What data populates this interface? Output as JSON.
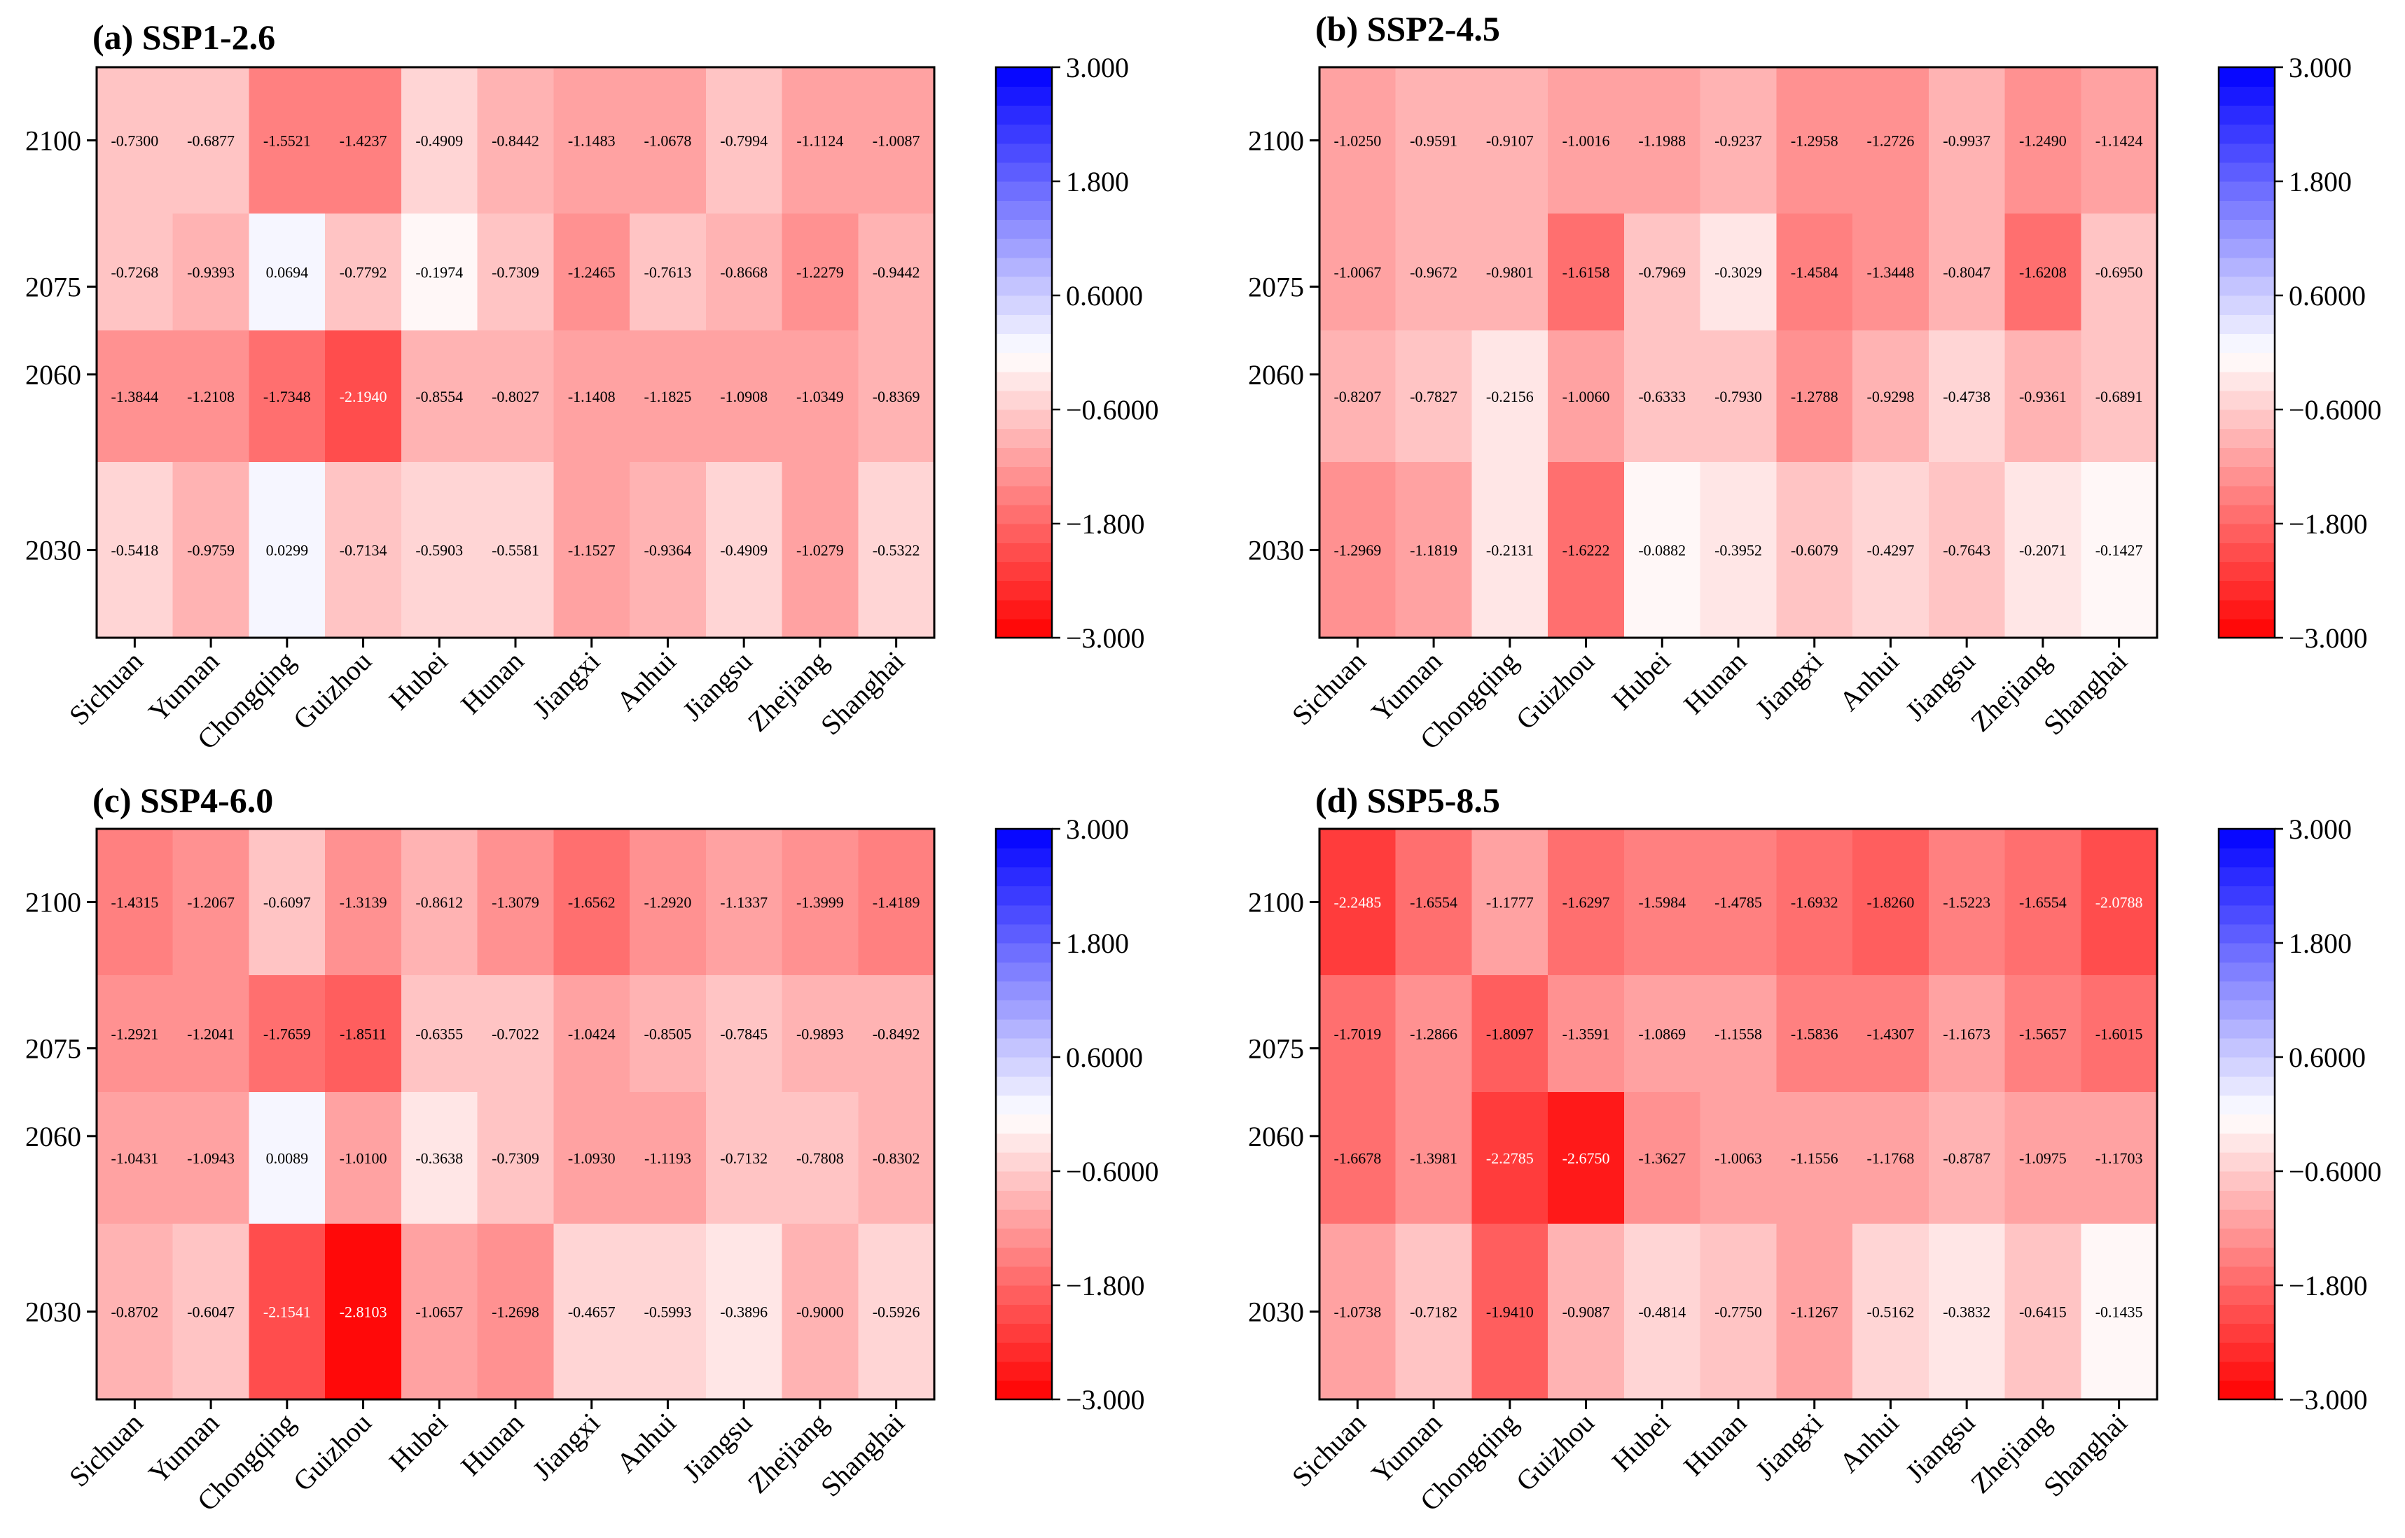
{
  "colorbar": {
    "ticks": [
      "3.000",
      "1.800",
      "0.6000",
      "−0.6000",
      "−1.800",
      "−3.000"
    ],
    "min": -3.0,
    "max": 3.0,
    "levels": 30,
    "low_color": "#ff0000",
    "mid_color": "#ffffff",
    "high_color": "#0000ff"
  },
  "chart_data": [
    {
      "type": "heatmap",
      "title": "(a) SSP1-2.6",
      "columns": [
        "Sichuan",
        "Yunnan",
        "Chongqing",
        "Guizhou",
        "Hubei",
        "Hunan",
        "Jiangxi",
        "Anhui",
        "Jiangsu",
        "Zhejiang",
        "Shanghai"
      ],
      "rows": [
        "2100",
        "2075",
        "2060",
        "2030"
      ],
      "row_spans": [
        [
          2087.5,
          2112.5
        ],
        [
          2067.5,
          2087.5
        ],
        [
          2045,
          2067.5
        ],
        [
          2015,
          2045
        ]
      ],
      "ylim": [
        2015,
        2112.5
      ],
      "values": [
        [
          -0.73,
          -0.6877,
          -1.5521,
          -1.4237,
          -0.4909,
          -0.8442,
          -1.1483,
          -1.0678,
          -0.7994,
          -1.1124,
          -1.0087
        ],
        [
          -0.7268,
          -0.9393,
          0.0694,
          -0.7792,
          -0.1974,
          -0.7309,
          -1.2465,
          -0.7613,
          -0.8668,
          -1.2279,
          -0.9442
        ],
        [
          -1.3844,
          -1.2108,
          -1.7348,
          -2.194,
          -0.8554,
          -0.8027,
          -1.1408,
          -1.1825,
          -1.0908,
          -1.0349,
          -0.8369
        ],
        [
          -0.5418,
          -0.9759,
          0.0299,
          -0.7134,
          -0.5903,
          -0.5581,
          -1.1527,
          -0.9364,
          -0.4909,
          -1.0279,
          -0.5322
        ]
      ],
      "labels": [
        [
          "-0.7300",
          "-0.6877",
          "-1.5521",
          "-1.4237",
          "-0.4909",
          "-0.8442",
          "-1.1483",
          "-1.0678",
          "-0.7994",
          "-1.1124",
          "-1.0087"
        ],
        [
          "-0.7268",
          "-0.9393",
          "0.0694",
          "-0.7792",
          "-0.1974",
          "-0.7309",
          "-1.2465",
          "-0.7613",
          "-0.8668",
          "-1.2279",
          "-0.9442"
        ],
        [
          "-1.3844",
          "-1.2108",
          "-1.7348",
          "-2.1940",
          "-0.8554",
          "-0.8027",
          "-1.1408",
          "-1.1825",
          "-1.0908",
          "-1.0349",
          "-0.8369"
        ],
        [
          "-0.5418",
          "-0.9759",
          "0.0299",
          "-0.7134",
          "-0.5903",
          "-0.5581",
          "-1.1527",
          "-0.9364",
          "-0.4909",
          "-1.0279",
          "-0.5322"
        ]
      ]
    },
    {
      "type": "heatmap",
      "title": "(b) SSP2-4.5",
      "columns": [
        "Sichuan",
        "Yunnan",
        "Chongqing",
        "Guizhou",
        "Hubei",
        "Hunan",
        "Jiangxi",
        "Anhui",
        "Jiangsu",
        "Zhejiang",
        "Shanghai"
      ],
      "rows": [
        "2100",
        "2075",
        "2060",
        "2030"
      ],
      "row_spans": [
        [
          2087.5,
          2112.5
        ],
        [
          2067.5,
          2087.5
        ],
        [
          2045,
          2067.5
        ],
        [
          2015,
          2045
        ]
      ],
      "ylim": [
        2015,
        2112.5
      ],
      "values": [
        [
          -1.025,
          -0.9591,
          -0.9107,
          -1.0016,
          -1.1988,
          -0.9237,
          -1.2958,
          -1.2726,
          -0.9937,
          -1.249,
          -1.1424
        ],
        [
          -1.0067,
          -0.9672,
          -0.9801,
          -1.6158,
          -0.7969,
          -0.3029,
          -1.4584,
          -1.3448,
          -0.8047,
          -1.6208,
          -0.695
        ],
        [
          -0.8207,
          -0.7827,
          -0.2156,
          -1.006,
          -0.6333,
          -0.793,
          -1.2788,
          -0.9298,
          -0.4738,
          -0.9361,
          -0.6891
        ],
        [
          -1.2969,
          -1.1819,
          -0.2131,
          -1.6222,
          -0.0882,
          -0.3952,
          -0.6079,
          -0.4297,
          -0.7643,
          -0.2071,
          -0.1427
        ]
      ],
      "labels": [
        [
          "-1.0250",
          "-0.9591",
          "-0.9107",
          "-1.0016",
          "-1.1988",
          "-0.9237",
          "-1.2958",
          "-1.2726",
          "-0.9937",
          "-1.2490",
          "-1.1424"
        ],
        [
          "-1.0067",
          "-0.9672",
          "-0.9801",
          "-1.6158",
          "-0.7969",
          "-0.3029",
          "-1.4584",
          "-1.3448",
          "-0.8047",
          "-1.6208",
          "-0.6950"
        ],
        [
          "-0.8207",
          "-0.7827",
          "-0.2156",
          "-1.0060",
          "-0.6333",
          "-0.7930",
          "-1.2788",
          "-0.9298",
          "-0.4738",
          "-0.9361",
          "-0.6891"
        ],
        [
          "-1.2969",
          "-1.1819",
          "-0.2131",
          "-1.6222",
          "-0.0882",
          "-0.3952",
          "-0.6079",
          "-0.4297",
          "-0.7643",
          "-0.2071",
          "-0.1427"
        ]
      ]
    },
    {
      "type": "heatmap",
      "title": "(c) SSP4-6.0",
      "columns": [
        "Sichuan",
        "Yunnan",
        "Chongqing",
        "Guizhou",
        "Hubei",
        "Hunan",
        "Jiangxi",
        "Anhui",
        "Jiangsu",
        "Zhejiang",
        "Shanghai"
      ],
      "rows": [
        "2100",
        "2075",
        "2060",
        "2030"
      ],
      "row_spans": [
        [
          2087.5,
          2112.5
        ],
        [
          2067.5,
          2087.5
        ],
        [
          2045,
          2067.5
        ],
        [
          2015,
          2045
        ]
      ],
      "ylim": [
        2015,
        2112.5
      ],
      "values": [
        [
          -1.4315,
          -1.2067,
          -0.6097,
          -1.3139,
          -0.8612,
          -1.3079,
          -1.6562,
          -1.292,
          -1.1337,
          -1.3999,
          -1.4189
        ],
        [
          -1.2921,
          -1.2041,
          -1.7659,
          -1.8511,
          -0.6355,
          -0.7022,
          -1.0424,
          -0.8505,
          -0.7845,
          -0.9893,
          -0.8492
        ],
        [
          -1.0431,
          -1.0943,
          0.0089,
          -1.01,
          -0.3638,
          -0.7309,
          -1.093,
          -1.1193,
          -0.7132,
          -0.7808,
          -0.8302
        ],
        [
          -0.8702,
          -0.6047,
          -2.1541,
          -2.8103,
          -1.0657,
          -1.2698,
          -0.4657,
          -0.5993,
          -0.3896,
          -0.9,
          -0.5926
        ]
      ],
      "labels": [
        [
          "-1.4315",
          "-1.2067",
          "-0.6097",
          "-1.3139",
          "-0.8612",
          "-1.3079",
          "-1.6562",
          "-1.2920",
          "-1.1337",
          "-1.3999",
          "-1.4189"
        ],
        [
          "-1.2921",
          "-1.2041",
          "-1.7659",
          "-1.8511",
          "-0.6355",
          "-0.7022",
          "-1.0424",
          "-0.8505",
          "-0.7845",
          "-0.9893",
          "-0.8492"
        ],
        [
          "-1.0431",
          "-1.0943",
          "0.0089",
          "-1.0100",
          "-0.3638",
          "-0.7309",
          "-1.0930",
          "-1.1193",
          "-0.7132",
          "-0.7808",
          "-0.8302"
        ],
        [
          "-0.8702",
          "-0.6047",
          "-2.1541",
          "-2.8103",
          "-1.0657",
          "-1.2698",
          "-0.4657",
          "-0.5993",
          "-0.3896",
          "-0.9000",
          "-0.5926"
        ]
      ]
    },
    {
      "type": "heatmap",
      "title": "(d) SSP5-8.5",
      "columns": [
        "Sichuan",
        "Yunnan",
        "Chongqing",
        "Guizhou",
        "Hubei",
        "Hunan",
        "Jiangxi",
        "Anhui",
        "Jiangsu",
        "Zhejiang",
        "Shanghai"
      ],
      "rows": [
        "2100",
        "2075",
        "2060",
        "2030"
      ],
      "row_spans": [
        [
          2087.5,
          2112.5
        ],
        [
          2067.5,
          2087.5
        ],
        [
          2045,
          2067.5
        ],
        [
          2015,
          2045
        ]
      ],
      "ylim": [
        2015,
        2112.5
      ],
      "values": [
        [
          -2.2485,
          -1.6554,
          -1.1777,
          -1.6297,
          -1.5984,
          -1.4785,
          -1.6932,
          -1.826,
          -1.5223,
          -1.6554,
          -2.0788
        ],
        [
          -1.7019,
          -1.2866,
          -1.8097,
          -1.3591,
          -1.0869,
          -1.1558,
          -1.5836,
          -1.4307,
          -1.1673,
          -1.5657,
          -1.6015
        ],
        [
          -1.6678,
          -1.3981,
          -2.2785,
          -2.675,
          -1.3627,
          -1.0063,
          -1.1556,
          -1.1768,
          -0.8787,
          -1.0975,
          -1.1703
        ],
        [
          -1.0738,
          -0.7182,
          -1.941,
          -0.9087,
          -0.4814,
          -0.775,
          -1.1267,
          -0.5162,
          -0.3832,
          -0.6415,
          -0.1435
        ]
      ],
      "labels": [
        [
          "-2.2485",
          "-1.6554",
          "-1.1777",
          "-1.6297",
          "-1.5984",
          "-1.4785",
          "-1.6932",
          "-1.8260",
          "-1.5223",
          "-1.6554",
          "-2.0788"
        ],
        [
          "-1.7019",
          "-1.2866",
          "-1.8097",
          "-1.3591",
          "-1.0869",
          "-1.1558",
          "-1.5836",
          "-1.4307",
          "-1.1673",
          "-1.5657",
          "-1.6015"
        ],
        [
          "-1.6678",
          "-1.3981",
          "-2.2785",
          "-2.6750",
          "-1.3627",
          "-1.0063",
          "-1.1556",
          "-1.1768",
          "-0.8787",
          "-1.0975",
          "-1.1703"
        ],
        [
          "-1.0738",
          "-0.7182",
          "-1.9410",
          "-0.9087",
          "-0.4814",
          "-0.7750",
          "-1.1267",
          "-0.5162",
          "-0.3832",
          "-0.6415",
          "-0.1435"
        ]
      ]
    }
  ]
}
